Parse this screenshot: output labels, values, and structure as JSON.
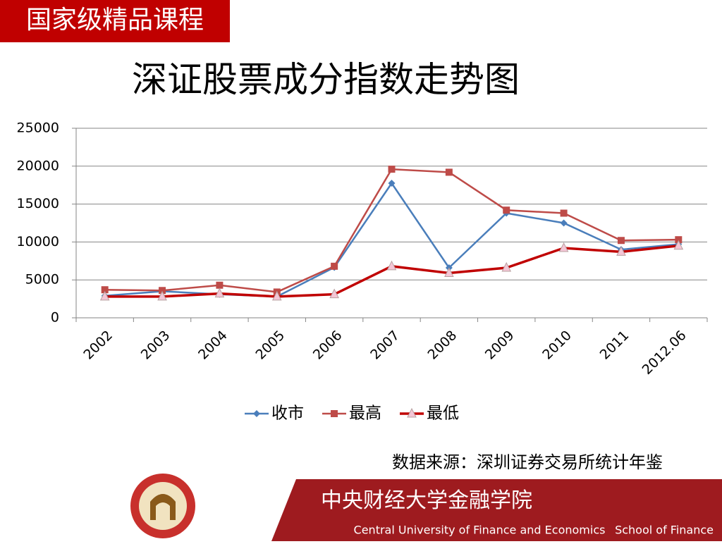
{
  "header": {
    "title": "国家级精品课程"
  },
  "chart_data": {
    "type": "line",
    "title": "深证股票成分指数走势图",
    "categories": [
      "2002",
      "2003",
      "2004",
      "2005",
      "2006",
      "2007",
      "2008",
      "2009",
      "2010",
      "2011",
      "2012.06"
    ],
    "series": [
      {
        "name": "收市",
        "color": "#4a7ebb",
        "marker": "diamond",
        "values": [
          2900,
          3500,
          3100,
          2800,
          6650,
          17750,
          6600,
          13800,
          12500,
          9000,
          9700
        ]
      },
      {
        "name": "最高",
        "color": "#be4b48",
        "marker": "square",
        "values": [
          3700,
          3600,
          4300,
          3400,
          6800,
          19600,
          19200,
          14200,
          13800,
          10200,
          10300
        ]
      },
      {
        "name": "最低",
        "color": "#c00000",
        "marker": "triangle",
        "values": [
          2800,
          2800,
          3200,
          2800,
          3100,
          6800,
          5900,
          6600,
          9200,
          8700,
          9500
        ]
      }
    ],
    "ylim": [
      0,
      25000
    ],
    "yticks": [
      0,
      5000,
      10000,
      15000,
      20000,
      25000
    ],
    "grid": true,
    "legend": "bottom"
  },
  "source": "数据来源：深圳证券交易所统计年鉴",
  "footer": {
    "school_cn": "中央财经大学金融学院",
    "school_en": "Central University of Finance and Economics",
    "department": "School of Finance"
  }
}
